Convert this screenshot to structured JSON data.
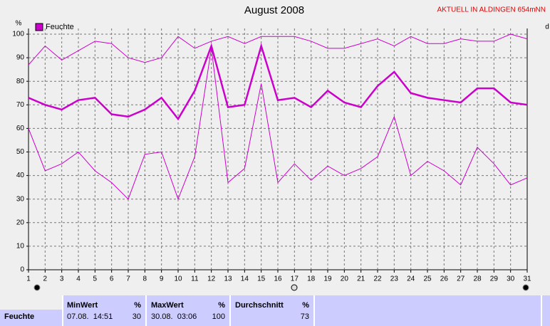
{
  "chart_data": {
    "type": "line",
    "title": "August 2008",
    "subtitle": "AKTUELL IN ALDINGEN 654mNN",
    "y_label": "%",
    "right_label": "d",
    "x": [
      1,
      2,
      3,
      4,
      5,
      6,
      7,
      8,
      9,
      10,
      11,
      12,
      13,
      14,
      15,
      16,
      17,
      18,
      19,
      20,
      21,
      22,
      23,
      24,
      25,
      26,
      27,
      28,
      29,
      30,
      31
    ],
    "xlim": [
      1,
      31
    ],
    "xticks": [
      1,
      2,
      3,
      4,
      5,
      6,
      7,
      8,
      9,
      10,
      11,
      12,
      13,
      14,
      15,
      16,
      17,
      18,
      19,
      20,
      21,
      22,
      23,
      24,
      25,
      26,
      27,
      28,
      29,
      30,
      31
    ],
    "ylim": [
      0,
      100
    ],
    "yticks": [
      0,
      10,
      20,
      30,
      40,
      50,
      60,
      70,
      80,
      90,
      100
    ],
    "grid": true,
    "series": [
      {
        "color": "#cc00cc",
        "values": [
          87,
          95,
          89,
          93,
          97,
          96,
          90,
          88,
          90,
          99,
          94,
          97,
          99,
          96,
          99,
          99,
          99,
          97,
          94,
          94,
          96,
          98,
          95,
          99,
          96,
          96,
          98,
          97,
          97,
          100,
          98
        ]
      },
      {
        "name": "Feuchte",
        "color": "#cc00cc",
        "values": [
          73,
          70,
          68,
          72,
          73,
          66,
          65,
          68,
          73,
          64,
          76,
          95,
          69,
          70,
          95,
          72,
          73,
          69,
          76,
          71,
          69,
          78,
          84,
          75,
          73,
          72,
          71,
          77,
          77,
          71,
          70
        ]
      },
      {
        "color": "#cc00cc",
        "values": [
          60,
          42,
          45,
          50,
          42,
          37,
          30,
          49,
          50,
          30,
          48,
          94,
          37,
          43,
          79,
          37,
          45,
          38,
          44,
          40,
          43,
          48,
          65,
          40,
          46,
          42,
          36,
          52,
          45,
          36,
          39
        ]
      }
    ]
  },
  "table": {
    "headers": [
      "MinWert",
      "%",
      "MaxWert",
      "%",
      "Durchschnitt",
      "%"
    ],
    "rows": [
      [
        "Feuchte",
        "07.08.  14:51",
        "30",
        "30.08.  03:06",
        "100",
        "73"
      ]
    ]
  }
}
